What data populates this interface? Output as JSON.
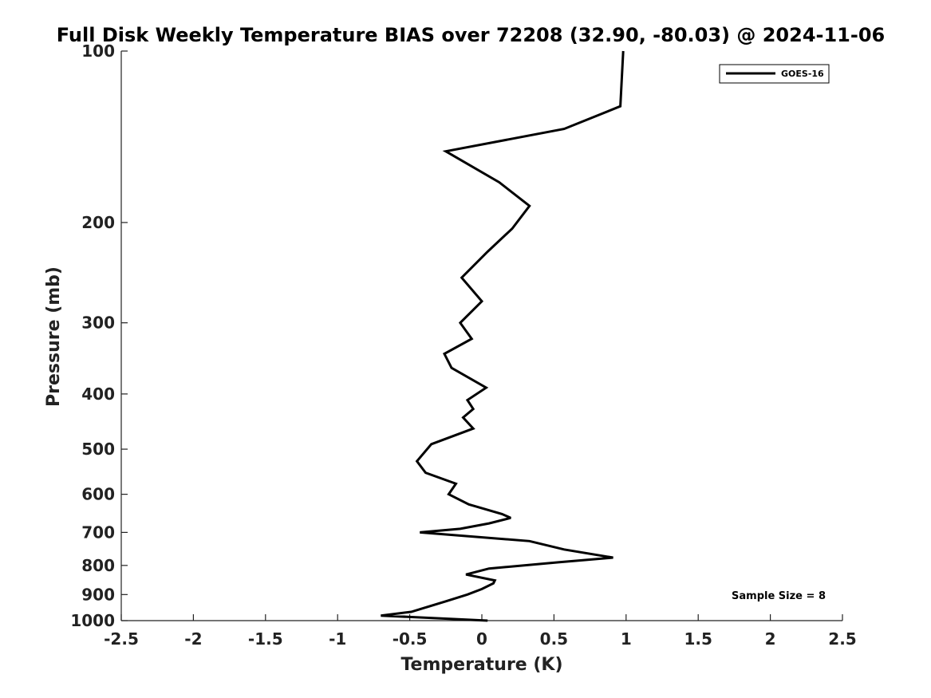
{
  "chart_data": {
    "type": "line",
    "title": "Full Disk Weekly Temperature BIAS over 72208 (32.90, -80.03) @ 2024-11-06",
    "xlabel": "Temperature (K)",
    "ylabel": "Pressure (mb)",
    "xlim": [
      -2.5,
      2.5
    ],
    "ylim": [
      100,
      1000
    ],
    "y_scale": "log",
    "y_reversed": true,
    "x_ticks": [
      "-2.5",
      "-2",
      "-1.5",
      "-1",
      "-0.5",
      "0",
      "0.5",
      "1",
      "1.5",
      "2",
      "2.5"
    ],
    "x_tick_values": [
      -2.5,
      -2,
      -1.5,
      -1,
      -0.5,
      0,
      0.5,
      1,
      1.5,
      2,
      2.5
    ],
    "y_ticks": [
      "100",
      "200",
      "300",
      "400",
      "500",
      "600",
      "700",
      "800",
      "900",
      "1000"
    ],
    "y_tick_values": [
      100,
      200,
      300,
      400,
      500,
      600,
      700,
      800,
      900,
      1000
    ],
    "grid": false,
    "legend_position": "top-right",
    "line_color": "#000000",
    "series": [
      {
        "name": "GOES-16",
        "x": [
          0.98,
          0.96,
          0.57,
          -0.25,
          0.12,
          0.33,
          0.21,
          0.04,
          -0.14,
          0.0,
          -0.15,
          -0.07,
          -0.26,
          -0.21,
          0.03,
          -0.1,
          -0.06,
          -0.13,
          -0.06,
          -0.35,
          -0.45,
          -0.39,
          -0.18,
          -0.23,
          -0.09,
          0.14,
          0.2,
          0.05,
          -0.15,
          -0.43,
          0.33,
          0.57,
          0.91,
          0.53,
          0.05,
          -0.11,
          0.09,
          0.08,
          0.0,
          -0.1,
          -0.25,
          -0.4,
          -0.49,
          -0.7,
          0.04
        ],
        "y": [
          100,
          125,
          137,
          150,
          170,
          187,
          205,
          225,
          250,
          275,
          300,
          320,
          340,
          360,
          390,
          410,
          425,
          440,
          460,
          490,
          525,
          550,
          575,
          600,
          625,
          650,
          660,
          675,
          690,
          700,
          725,
          750,
          775,
          790,
          810,
          830,
          850,
          860,
          880,
          900,
          925,
          950,
          965,
          980,
          1000
        ]
      }
    ],
    "annotation": "Sample Size = 8"
  }
}
